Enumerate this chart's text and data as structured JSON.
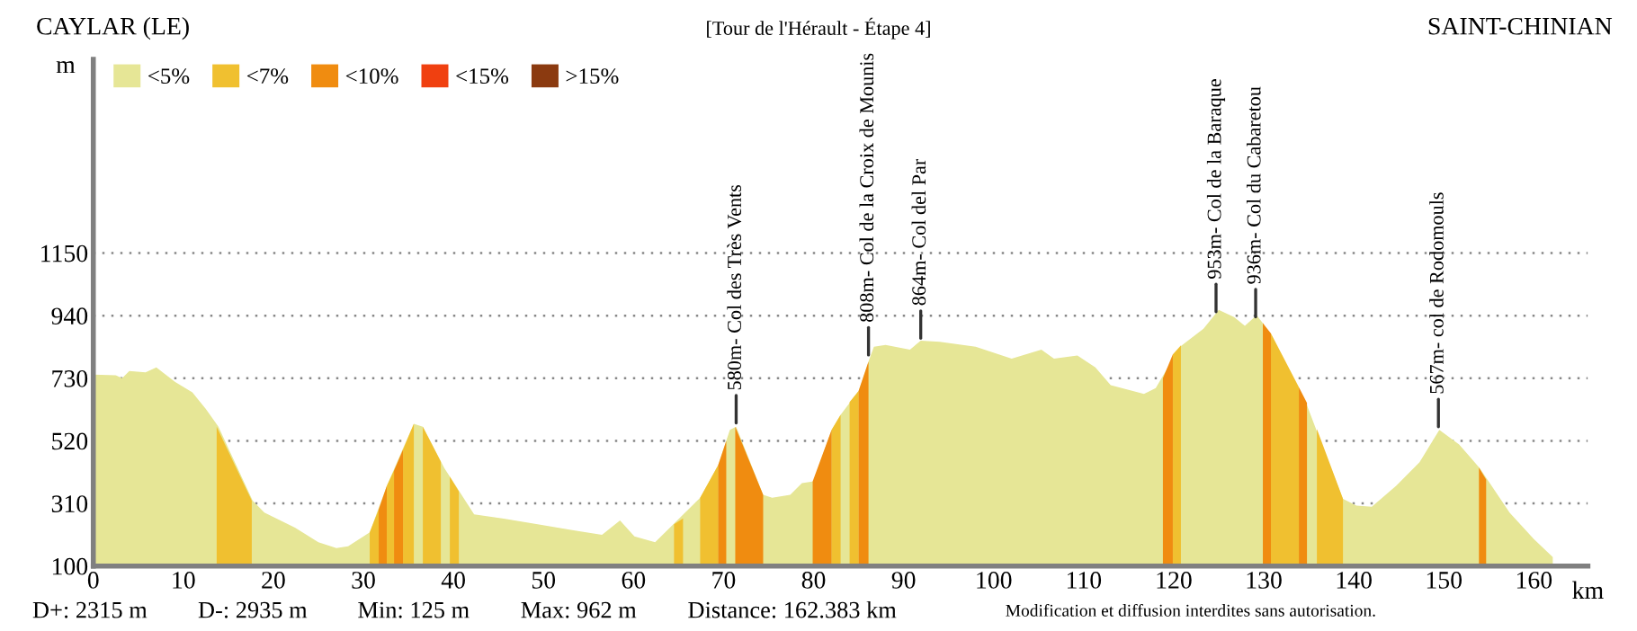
{
  "chart_data": {
    "type": "area",
    "title": "[Tour de l'Hérault - Étape 4]",
    "xlabel": "km",
    "ylabel": "m",
    "xlim": [
      0,
      166
    ],
    "xticks": [
      0,
      10,
      20,
      30,
      40,
      50,
      60,
      70,
      80,
      90,
      100,
      110,
      120,
      130,
      140,
      150,
      160
    ],
    "ylim": [
      100,
      1800
    ],
    "yticks": [
      100,
      310,
      520,
      730,
      940,
      1150
    ],
    "grid": "y",
    "legend": "top left",
    "series": [
      {
        "name": "<5%",
        "color": "#e6e696",
        "x": [
          0,
          2.5,
          3.2,
          4,
          5.8,
          7,
          9.1,
          11,
          12.5,
          13.9,
          17.7,
          19,
          22.4,
          25,
          27,
          28.3,
          30.7,
          32.6,
          34.3,
          35.6,
          36.6,
          39,
          42.3,
          45.6,
          49.5,
          53.5,
          56.5,
          58.5,
          60.1,
          62.4,
          67.4,
          69.4,
          70.7,
          71.4,
          74.4,
          75.4,
          77.4,
          78.7,
          80,
          82,
          83,
          85,
          86.1,
          86.7,
          88,
          90.7,
          91.9,
          94,
          98,
          102,
          105.3,
          106.7,
          109.3,
          111.3,
          113,
          116.7,
          118,
          120.7,
          123.3,
          125,
          126.7,
          127.9,
          129.2,
          129.9,
          134.7,
          136.7,
          138.8,
          140.3,
          142,
          144.7,
          147.3,
          149.5,
          151.7,
          154,
          157.3,
          160,
          162.1
        ],
        "values": [
          742,
          740,
          730,
          754,
          750,
          766,
          717,
          683,
          627,
          567,
          319,
          279,
          229,
          180,
          160,
          166,
          213,
          369,
          488,
          577,
          567,
          428,
          273,
          259,
          239,
          219,
          205,
          253,
          199,
          180,
          329,
          438,
          557,
          567,
          339,
          329,
          339,
          378,
          384,
          557,
          607,
          687,
          786,
          836,
          842,
          826,
          856,
          852,
          836,
          796,
          826,
          796,
          806,
          766,
          707,
          677,
          697,
          836,
          896,
          959,
          935,
          906,
          941,
          915,
          647,
          488,
          325,
          303,
          299,
          369,
          448,
          557,
          508,
          428,
          279,
          190,
          130
        ]
      },
      {
        "name": "<7%",
        "color": "#f0c030",
        "x": [
          13.7,
          17.6,
          null,
          30.7,
          31.7,
          null,
          32.6,
          33.4,
          null,
          34.4,
          35.6,
          null,
          36.6,
          38.6,
          null,
          39.6,
          40.6,
          null,
          64.5,
          65.5,
          null,
          67.4,
          69.4,
          null,
          82,
          83,
          null,
          84,
          85,
          null,
          119.9,
          120.8,
          null,
          130.8,
          133.9,
          null,
          135.9,
          138.8
        ],
        "values": [
          567,
          319,
          null,
          213,
          290,
          null,
          369,
          420,
          null,
          490,
          577,
          null,
          567,
          450,
          null,
          400,
          350,
          null,
          240,
          260,
          null,
          329,
          438,
          null,
          557,
          607,
          null,
          650,
          687,
          null,
          810,
          840,
          null,
          880,
          700,
          null,
          560,
          325
        ]
      },
      {
        "name": "<10%",
        "color": "#f08c10",
        "x": [
          31.7,
          32.6,
          null,
          33.4,
          34.4,
          null,
          69.4,
          70.3,
          null,
          71.3,
          74.4,
          null,
          79.9,
          82,
          null,
          85,
          86.1,
          null,
          118.8,
          119.9,
          null,
          129.9,
          130.8,
          null,
          133.9,
          134.8,
          null,
          153.9,
          154.7
        ],
        "values": [
          290,
          369,
          null,
          420,
          490,
          null,
          438,
          520,
          null,
          567,
          339,
          null,
          384,
          557,
          null,
          687,
          786,
          null,
          730,
          810,
          null,
          915,
          880,
          null,
          700,
          647,
          null,
          430,
          390
        ]
      },
      {
        "name": "<15%",
        "color": "#f04010"
      },
      {
        "name": ">15%",
        "color": "#8b3a10"
      }
    ],
    "annotations": [
      {
        "text": "580m- Col des Très Vents",
        "x": 71.4,
        "y": 580
      },
      {
        "text": "808m- Col de la Croix de Mounis",
        "x": 86.1,
        "y": 808
      },
      {
        "text": "864m- Col del Par",
        "x": 91.9,
        "y": 864
      },
      {
        "text": "953m- Col de la Baraque",
        "x": 124.7,
        "y": 953
      },
      {
        "text": "936m- Col du Cabaretou",
        "x": 129.1,
        "y": 936
      },
      {
        "text": "567m- col de Rodomouls",
        "x": 149.4,
        "y": 567
      },
      "CAYLAR (LE)",
      "SAINT-CHINIAN",
      "D+: 2315 m",
      "D-: 2935 m",
      "Min: 125 m",
      "Max: 962 m",
      "Distance: 162.383 km",
      "Modification et diffusion interdites sans autorisation."
    ]
  }
}
